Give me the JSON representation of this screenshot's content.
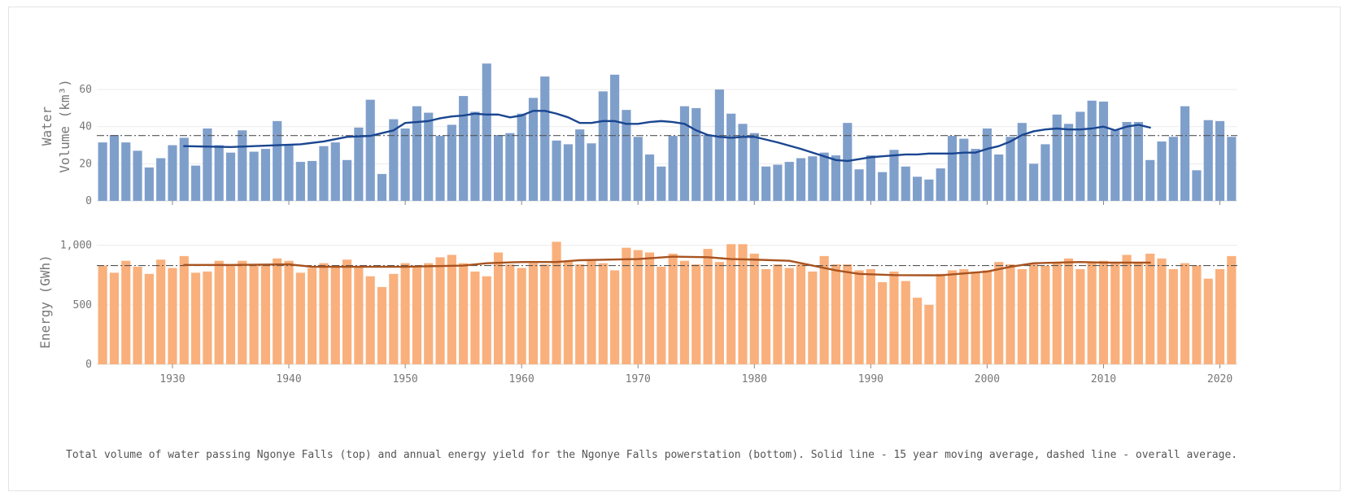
{
  "chart_data": [
    {
      "type": "bar",
      "panel": "top",
      "ylabel": "Water Volume (km³)",
      "ylabel_lines": [
        "Water",
        "Volume (km³)"
      ],
      "ylim": [
        0,
        78
      ],
      "yticks": [
        0,
        20,
        40,
        60
      ],
      "grid": true,
      "colors": {
        "bar": "#7f9fcb",
        "line": "#1a4690",
        "avg": "#555555"
      },
      "x": [
        1924,
        1925,
        1926,
        1927,
        1928,
        1929,
        1930,
        1931,
        1932,
        1933,
        1934,
        1935,
        1936,
        1937,
        1938,
        1939,
        1940,
        1941,
        1942,
        1943,
        1944,
        1945,
        1946,
        1947,
        1948,
        1949,
        1950,
        1951,
        1952,
        1953,
        1954,
        1955,
        1956,
        1957,
        1958,
        1959,
        1960,
        1961,
        1962,
        1963,
        1964,
        1965,
        1966,
        1967,
        1968,
        1969,
        1970,
        1971,
        1972,
        1973,
        1974,
        1975,
        1976,
        1977,
        1978,
        1979,
        1980,
        1981,
        1982,
        1983,
        1984,
        1985,
        1986,
        1987,
        1988,
        1989,
        1990,
        1991,
        1992,
        1993,
        1994,
        1995,
        1996,
        1997,
        1998,
        1999,
        2000,
        2001,
        2002,
        2003,
        2004,
        2005,
        2006,
        2007,
        2008,
        2009,
        2010,
        2011,
        2012,
        2013,
        2014,
        2015,
        2016,
        2017,
        2018,
        2019,
        2020,
        2021
      ],
      "values": [
        31.5,
        35.5,
        31.5,
        27,
        18,
        23,
        30,
        34,
        19,
        39,
        30,
        26,
        38,
        26.5,
        28,
        43,
        30.5,
        21,
        21.5,
        29.5,
        31.5,
        22,
        39.5,
        54.5,
        14.5,
        44,
        39,
        51,
        47.5,
        35,
        41,
        56.5,
        48,
        74,
        35.5,
        36.5,
        47,
        55.5,
        67,
        32.5,
        30.5,
        38.5,
        31,
        59,
        68,
        49,
        34.5,
        25,
        18.5,
        35,
        51,
        50,
        35.5,
        60,
        47,
        41.5,
        36.5,
        18.5,
        19.5,
        21,
        23,
        24,
        26,
        24.5,
        42,
        17,
        24.5,
        15.5,
        27.5,
        18.5,
        13,
        11.5,
        17.5,
        35,
        33.5,
        28,
        39,
        25,
        34.5,
        42,
        20,
        30.5,
        46.5,
        41.5,
        48,
        54,
        53.5,
        38,
        42.5,
        42.5,
        22,
        32,
        34.5,
        51,
        16.5,
        43.5,
        43,
        34.5
      ],
      "moving_average": {
        "label": "15 year moving average",
        "x": [
          1931,
          1935,
          1939,
          1941,
          1943,
          1945,
          1947,
          1948,
          1949,
          1950,
          1951,
          1952,
          1953,
          1954,
          1955,
          1956,
          1957,
          1958,
          1959,
          1960,
          1961,
          1962,
          1963,
          1964,
          1965,
          1966,
          1967,
          1968,
          1969,
          1970,
          1971,
          1972,
          1973,
          1974,
          1975,
          1976,
          1977,
          1978,
          1979,
          1980,
          1982,
          1984,
          1986,
          1987,
          1988,
          1989,
          1990,
          1991,
          1992,
          1993,
          1994,
          1995,
          1996,
          1997,
          1998,
          1999,
          2000,
          2001,
          2002,
          2003,
          2004,
          2005,
          2006,
          2007,
          2008,
          2009,
          2010,
          2011,
          2012,
          2013,
          2014
        ],
        "values": [
          29.5,
          29,
          30,
          30.5,
          32,
          34.5,
          35,
          36.5,
          38,
          42,
          42.5,
          43,
          44.5,
          45.5,
          46,
          47,
          46.5,
          46.5,
          45,
          46,
          48.5,
          48.5,
          47,
          45,
          42,
          42,
          43,
          43,
          41.5,
          41.5,
          42.5,
          43,
          42.5,
          41.5,
          38,
          35.5,
          34.5,
          34,
          34.5,
          34.5,
          31.5,
          28,
          24,
          22,
          21.5,
          22.5,
          23.5,
          24,
          24.5,
          25,
          25,
          25.5,
          25.5,
          25.5,
          26,
          26,
          28,
          29.5,
          32,
          35.5,
          37.5,
          38.5,
          39,
          38.5,
          38.5,
          39,
          40,
          38,
          40,
          41,
          39.5
        ]
      },
      "overall_average": {
        "label": "overall average",
        "value": 35.2
      }
    },
    {
      "type": "bar",
      "panel": "bottom",
      "ylabel": "Energy (GWh)",
      "ylim": [
        0,
        1080
      ],
      "yticks": [
        0,
        500,
        1000
      ],
      "ytick_labels": [
        "0",
        "500",
        "1,000"
      ],
      "grid": true,
      "colors": {
        "bar": "#f9b07c",
        "line": "#a8531f",
        "avg": "#555555"
      },
      "xticks": [
        1930,
        1940,
        1950,
        1960,
        1970,
        1980,
        1990,
        2000,
        2010,
        2020
      ],
      "x": [
        1924,
        1925,
        1926,
        1927,
        1928,
        1929,
        1930,
        1931,
        1932,
        1933,
        1934,
        1935,
        1936,
        1937,
        1938,
        1939,
        1940,
        1941,
        1942,
        1943,
        1944,
        1945,
        1946,
        1947,
        1948,
        1949,
        1950,
        1951,
        1952,
        1953,
        1954,
        1955,
        1956,
        1957,
        1958,
        1959,
        1960,
        1961,
        1962,
        1963,
        1964,
        1965,
        1966,
        1967,
        1968,
        1969,
        1970,
        1971,
        1972,
        1973,
        1974,
        1975,
        1976,
        1977,
        1978,
        1979,
        1980,
        1981,
        1982,
        1983,
        1984,
        1985,
        1986,
        1987,
        1988,
        1989,
        1990,
        1991,
        1992,
        1993,
        1994,
        1995,
        1996,
        1997,
        1998,
        1999,
        2000,
        2001,
        2002,
        2003,
        2004,
        2005,
        2006,
        2007,
        2008,
        2009,
        2010,
        2011,
        2012,
        2013,
        2014,
        2015,
        2016,
        2017,
        2018,
        2019,
        2020,
        2021
      ],
      "values": [
        830,
        770,
        870,
        820,
        760,
        880,
        810,
        910,
        770,
        780,
        870,
        840,
        870,
        830,
        840,
        890,
        870,
        770,
        810,
        850,
        830,
        880,
        820,
        740,
        650,
        760,
        850,
        830,
        850,
        900,
        920,
        850,
        780,
        740,
        940,
        840,
        810,
        850,
        840,
        1030,
        870,
        840,
        870,
        850,
        790,
        980,
        960,
        940,
        820,
        930,
        870,
        840,
        970,
        860,
        1010,
        1010,
        930,
        800,
        840,
        810,
        840,
        780,
        910,
        840,
        840,
        790,
        800,
        690,
        780,
        700,
        560,
        500,
        760,
        790,
        800,
        780,
        790,
        860,
        840,
        800,
        840,
        830,
        850,
        890,
        800,
        860,
        870,
        850,
        920,
        850,
        930,
        890,
        800,
        850,
        830,
        720,
        800,
        910
      ],
      "moving_average": {
        "label": "15 year moving average",
        "x": [
          1931,
          1935,
          1940,
          1942,
          1945,
          1950,
          1955,
          1957,
          1960,
          1963,
          1965,
          1970,
          1973,
          1976,
          1978,
          1980,
          1983,
          1985,
          1987,
          1989,
          1992,
          1996,
          2000,
          2002,
          2004,
          2006,
          2008,
          2010,
          2012,
          2014
        ],
        "values": [
          835,
          835,
          840,
          820,
          820,
          820,
          830,
          850,
          860,
          860,
          875,
          885,
          905,
          900,
          885,
          880,
          870,
          830,
          790,
          760,
          750,
          748,
          780,
          820,
          850,
          855,
          860,
          855,
          855,
          855
        ]
      },
      "overall_average": {
        "label": "overall average",
        "value": 830
      }
    }
  ],
  "caption": "Total volume of water passing Ngonye Falls (top) and annual energy yield for the Ngonye Falls powerstation (bottom). Solid line - 15 year moving average, dashed line - overall average."
}
